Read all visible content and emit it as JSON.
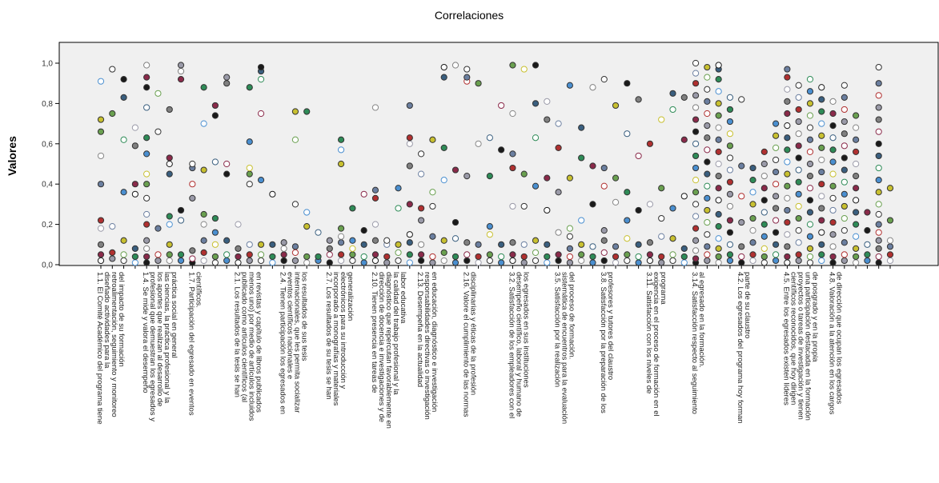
{
  "chart_data": {
    "type": "scatter",
    "title": "Correlaciones",
    "ylabel": "Valores",
    "xlabel": "",
    "ylim": [
      0,
      1.0
    ],
    "yticks": [
      "0,0",
      "0,2",
      "0,4",
      "0,6",
      "0,8",
      "1,0"
    ],
    "grid": false,
    "legend": "none",
    "categories": [
      "1.1. El Comité Académico del programa tiene diseñado actividades para la retroalimentación, seguimiento y monitoreo del impacto de su formación",
      "1.4. Se mide y valora el desempeño profesional que demuestran los egresados y los aportes que realizan al desarrollo de las ciencias, la práctica profesional y la práctica social en general",
      "1.7. Participación del egresado en eventos científicos.",
      "2.1. Los resultados de la tesis se han publicado como artículos científicos (al menos uno) por medio de artículos incluidos en revistas y capítulo de libros publicados",
      "2.4. Tienen participación los egresados en eventos científicos nacionales e internacionales, que les permita socializar los resultados de sus tesis",
      "2.7. Los resultados de su tesis se han incorporado a monografías y materiales electrónicos para su introducción y generalización",
      "2.10. Tienen presencia en tareas de dirección de docencia e investigaciones y de diagnóstico que repercutan favorablemente en la calidad del trabajo profesional y la labor educativa",
      "2.13. Desempeña en la actualidad responsabilidades directivas o investigación en educación, diagnóstico e investigación",
      "2.16. Valore el cumplimiento de las normas disciplinarias y éticas de la profesión",
      "3.2. Satisfacción de los empleadores con el desempeño científico, laboral y humano de los egresados en sus instituciones",
      "3.5. Satisfacción por la realización sistemática de encuentros para la evaluación del proceso de formación.",
      "3.8. Satisfacción por la preparación de los profesores y tutores del claustro",
      "3.11. Satisfacción con los niveles de exigencia en el proceso de formación en el programa",
      "3.14. Satisfacción respecto al seguimiento al egresado en la formación.",
      "4.2. Los egresados del programa hoy forman parte de su claustro",
      "4.5. Entre los egresados existen líderes científicos reconocidos, que hoy dirigen proyectos o tareas de investigación y tienen una participación destacada en la formación de posgrado y en la propia",
      "4.8. Valoración a la atención en los cargos de dirección que ocupan los egresados"
    ],
    "columns": 70,
    "label_every": 4,
    "marker": "circle",
    "palette": [
      "#1a1a1a",
      "#6b7fa0",
      "#2e8b57",
      "#9a9aa8",
      "#c8c030",
      "#8a2a4a",
      "#ffffff",
      "#3a5f7f",
      "#b03030",
      "#4a8fd0",
      "#808080",
      "#6aa050"
    ],
    "series_values": [
      [
        0.02,
        0.05,
        0.1,
        0.18,
        0.22,
        0.4,
        0.54,
        0.66,
        0.72,
        0.91
      ],
      [
        0.03,
        0.06,
        0.19,
        0.97,
        0.75
      ],
      [
        0.02,
        0.05,
        0.12,
        0.36,
        0.62,
        0.83,
        0.92
      ],
      [
        0.01,
        0.04,
        0.08,
        0.35,
        0.4,
        0.59,
        0.68
      ],
      [
        0.01,
        0.04,
        0.08,
        0.12,
        0.2,
        0.25,
        0.33,
        0.4,
        0.45,
        0.55,
        0.63,
        0.78,
        0.88,
        0.93,
        0.99
      ],
      [
        0.02,
        0.05,
        0.18,
        0.66,
        0.85
      ],
      [
        0.02,
        0.05,
        0.1,
        0.2,
        0.24,
        0.45,
        0.5,
        0.53,
        0.77
      ],
      [
        0.02,
        0.05,
        0.22,
        0.27,
        0.92,
        0.96,
        0.99
      ],
      [
        0.01,
        0.03,
        0.07,
        0.33,
        0.4,
        0.48,
        0.5
      ],
      [
        0.02,
        0.06,
        0.12,
        0.2,
        0.25,
        0.47,
        0.7,
        0.88
      ],
      [
        0.01,
        0.04,
        0.1,
        0.16,
        0.23,
        0.51,
        0.74,
        0.79
      ],
      [
        0.02,
        0.05,
        0.12,
        0.45,
        0.5,
        0.9,
        0.93
      ],
      [
        0.01,
        0.04,
        0.08,
        0.2
      ],
      [
        0.02,
        0.05,
        0.1,
        0.4,
        0.45,
        0.48,
        0.61,
        0.88
      ],
      [
        0.02,
        0.05,
        0.1,
        0.42,
        0.92,
        0.96,
        0.98,
        0.75
      ],
      [
        0.01,
        0.04,
        0.1,
        0.35
      ],
      [
        0.02,
        0.05,
        0.08,
        0.11
      ],
      [
        0.02,
        0.06,
        0.09,
        0.3,
        0.62,
        0.76
      ],
      [
        0.01,
        0.04,
        0.19,
        0.26,
        0.76
      ],
      [
        0.02,
        0.04,
        0.16
      ],
      [
        0.01,
        0.05,
        0.08,
        0.12
      ],
      [
        0.02,
        0.05,
        0.11,
        0.14,
        0.18,
        0.5,
        0.57,
        0.62
      ],
      [
        0.02,
        0.05,
        0.08,
        0.12,
        0.28
      ],
      [
        0.01,
        0.04,
        0.1,
        0.17,
        0.35
      ],
      [
        0.02,
        0.05,
        0.12,
        0.2,
        0.33,
        0.37,
        0.78
      ],
      [
        0.01,
        0.04,
        0.1,
        0.12
      ],
      [
        0.02,
        0.06,
        0.1,
        0.38,
        0.28
      ],
      [
        0.01,
        0.05,
        0.11,
        0.15,
        0.3,
        0.49,
        0.6,
        0.63,
        0.79
      ],
      [
        0.02,
        0.05,
        0.1,
        0.22,
        0.28,
        0.45,
        0.55
      ],
      [
        0.01,
        0.04,
        0.14,
        0.29,
        0.36,
        0.62
      ],
      [
        0.02,
        0.06,
        0.12,
        0.42,
        0.58,
        0.93,
        0.98
      ],
      [
        0.01,
        0.04,
        0.13,
        0.21,
        0.47,
        0.99
      ],
      [
        0.02,
        0.05,
        0.11,
        0.44,
        0.91,
        0.93,
        0.97
      ],
      [
        0.01,
        0.04,
        0.1,
        0.6,
        0.9
      ],
      [
        0.02,
        0.05,
        0.15,
        0.19,
        0.44,
        0.63
      ],
      [
        0.01,
        0.04,
        0.1,
        0.57,
        0.79
      ],
      [
        0.02,
        0.05,
        0.11,
        0.29,
        0.48,
        0.55,
        0.75,
        0.99
      ],
      [
        0.01,
        0.04,
        0.1,
        0.29,
        0.45,
        0.97
      ],
      [
        0.02,
        0.06,
        0.12,
        0.39,
        0.63,
        0.8,
        0.99
      ],
      [
        0.01,
        0.04,
        0.1,
        0.27,
        0.43,
        0.72,
        0.81
      ],
      [
        0.02,
        0.05,
        0.16,
        0.36,
        0.58,
        0.7
      ],
      [
        0.01,
        0.04,
        0.08,
        0.14,
        0.18,
        0.43,
        0.89
      ],
      [
        0.02,
        0.05,
        0.1,
        0.22,
        0.53,
        0.68
      ],
      [
        0.01,
        0.04,
        0.09,
        0.3,
        0.49,
        0.88
      ],
      [
        0.02,
        0.06,
        0.12,
        0.17,
        0.39,
        0.48,
        0.92
      ],
      [
        0.01,
        0.04,
        0.09,
        0.31,
        0.43,
        0.79
      ],
      [
        0.02,
        0.05,
        0.13,
        0.22,
        0.36,
        0.65,
        0.9
      ],
      [
        0.01,
        0.04,
        0.1,
        0.27,
        0.54,
        0.82
      ],
      [
        0.02,
        0.05,
        0.11,
        0.3,
        0.6
      ],
      [
        0.01,
        0.04,
        0.14,
        0.23,
        0.38,
        0.72
      ],
      [
        0.02,
        0.05,
        0.13,
        0.28,
        0.77,
        0.85
      ],
      [
        0.01,
        0.04,
        0.08,
        0.34,
        0.62,
        0.83
      ],
      [
        0.01,
        0.03,
        0.07,
        0.12,
        0.18,
        0.24,
        0.3,
        0.36,
        0.42,
        0.48,
        0.54,
        0.6,
        0.66,
        0.72,
        0.78,
        0.84,
        0.9,
        0.95,
        1.0
      ],
      [
        0.02,
        0.05,
        0.09,
        0.15,
        0.21,
        0.27,
        0.33,
        0.39,
        0.45,
        0.51,
        0.57,
        0.63,
        0.69,
        0.75,
        0.81,
        0.87,
        0.93,
        0.98
      ],
      [
        0.01,
        0.04,
        0.08,
        0.13,
        0.19,
        0.25,
        0.32,
        0.38,
        0.44,
        0.5,
        0.56,
        0.62,
        0.68,
        0.74,
        0.8,
        0.86,
        0.92,
        0.97,
        0.99
      ],
      [
        0.02,
        0.05,
        0.1,
        0.16,
        0.22,
        0.29,
        0.35,
        0.41,
        0.47,
        0.53,
        0.59,
        0.65,
        0.71,
        0.77,
        0.83
      ],
      [
        0.01,
        0.04,
        0.09,
        0.21,
        0.34,
        0.49,
        0.82
      ],
      [
        0.02,
        0.05,
        0.11,
        0.17,
        0.23,
        0.3,
        0.36,
        0.42,
        0.48
      ],
      [
        0.01,
        0.04,
        0.08,
        0.14,
        0.2,
        0.26,
        0.32,
        0.38,
        0.44,
        0.5,
        0.56
      ],
      [
        0.02,
        0.05,
        0.1,
        0.16,
        0.22,
        0.28,
        0.34,
        0.4,
        0.46,
        0.52,
        0.58,
        0.64,
        0.7
      ],
      [
        0.01,
        0.04,
        0.09,
        0.15,
        0.21,
        0.27,
        0.33,
        0.39,
        0.45,
        0.51,
        0.57,
        0.63,
        0.69,
        0.75,
        0.81,
        0.87,
        0.93,
        0.97
      ],
      [
        0.02,
        0.05,
        0.11,
        0.17,
        0.23,
        0.29,
        0.35,
        0.41,
        0.47,
        0.53,
        0.59,
        0.65,
        0.71,
        0.77,
        0.83,
        0.89
      ],
      [
        0.01,
        0.04,
        0.08,
        0.14,
        0.2,
        0.26,
        0.32,
        0.38,
        0.44,
        0.5,
        0.56,
        0.62,
        0.68,
        0.74,
        0.8,
        0.86,
        0.92
      ],
      [
        0.02,
        0.05,
        0.1,
        0.16,
        0.22,
        0.28,
        0.34,
        0.4,
        0.46,
        0.52,
        0.58,
        0.64,
        0.7,
        0.76,
        0.82,
        0.88
      ],
      [
        0.01,
        0.04,
        0.09,
        0.15,
        0.21,
        0.27,
        0.33,
        0.39,
        0.45,
        0.51,
        0.57,
        0.63,
        0.69,
        0.75,
        0.81
      ],
      [
        0.02,
        0.05,
        0.11,
        0.17,
        0.23,
        0.29,
        0.35,
        0.41,
        0.47,
        0.53,
        0.59,
        0.65,
        0.71,
        0.77,
        0.83,
        0.89
      ],
      [
        0.01,
        0.04,
        0.08,
        0.14,
        0.2,
        0.26,
        0.32,
        0.38,
        0.44,
        0.5,
        0.56,
        0.62,
        0.68,
        0.74
      ],
      [
        0.02,
        0.05,
        0.1,
        0.17,
        0.26
      ],
      [
        0.01,
        0.04,
        0.08,
        0.12,
        0.16,
        0.2,
        0.25,
        0.3,
        0.36,
        0.42,
        0.48,
        0.54,
        0.6,
        0.66,
        0.72,
        0.78,
        0.84,
        0.9,
        0.98
      ],
      [
        0.02,
        0.05,
        0.09,
        0.12,
        0.22,
        0.38
      ]
    ]
  }
}
